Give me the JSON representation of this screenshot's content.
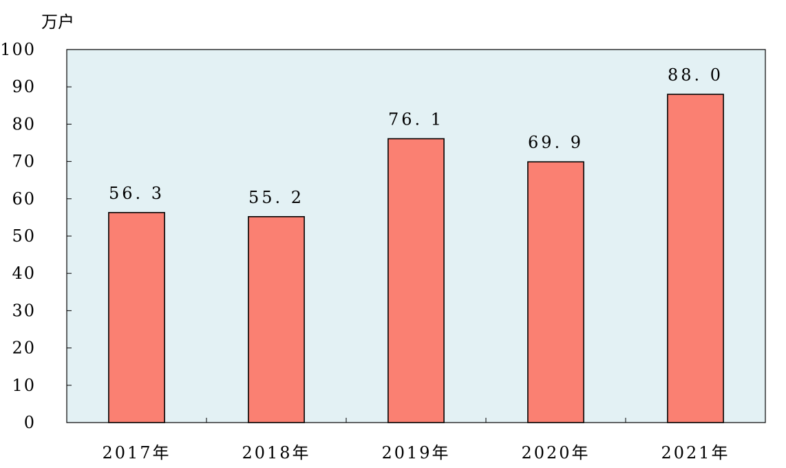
{
  "chart_data": {
    "type": "bar",
    "unit_label": "万户",
    "categories": [
      "2017年",
      "2018年",
      "2019年",
      "2020年",
      "2021年"
    ],
    "values": [
      56.3,
      55.2,
      76.1,
      69.9,
      88.0
    ],
    "value_labels": [
      "56. 3",
      "55. 2",
      "76. 1",
      "69. 9",
      "88. 0"
    ],
    "ylim": [
      0,
      100
    ],
    "yticks": [
      0,
      10,
      20,
      30,
      40,
      50,
      60,
      70,
      80,
      90,
      100
    ],
    "grid": false,
    "colors": {
      "plot_background": "#e3f1f4",
      "bar_fill": "#fa8072",
      "bar_stroke": "#000000",
      "axis": "#000000"
    }
  }
}
